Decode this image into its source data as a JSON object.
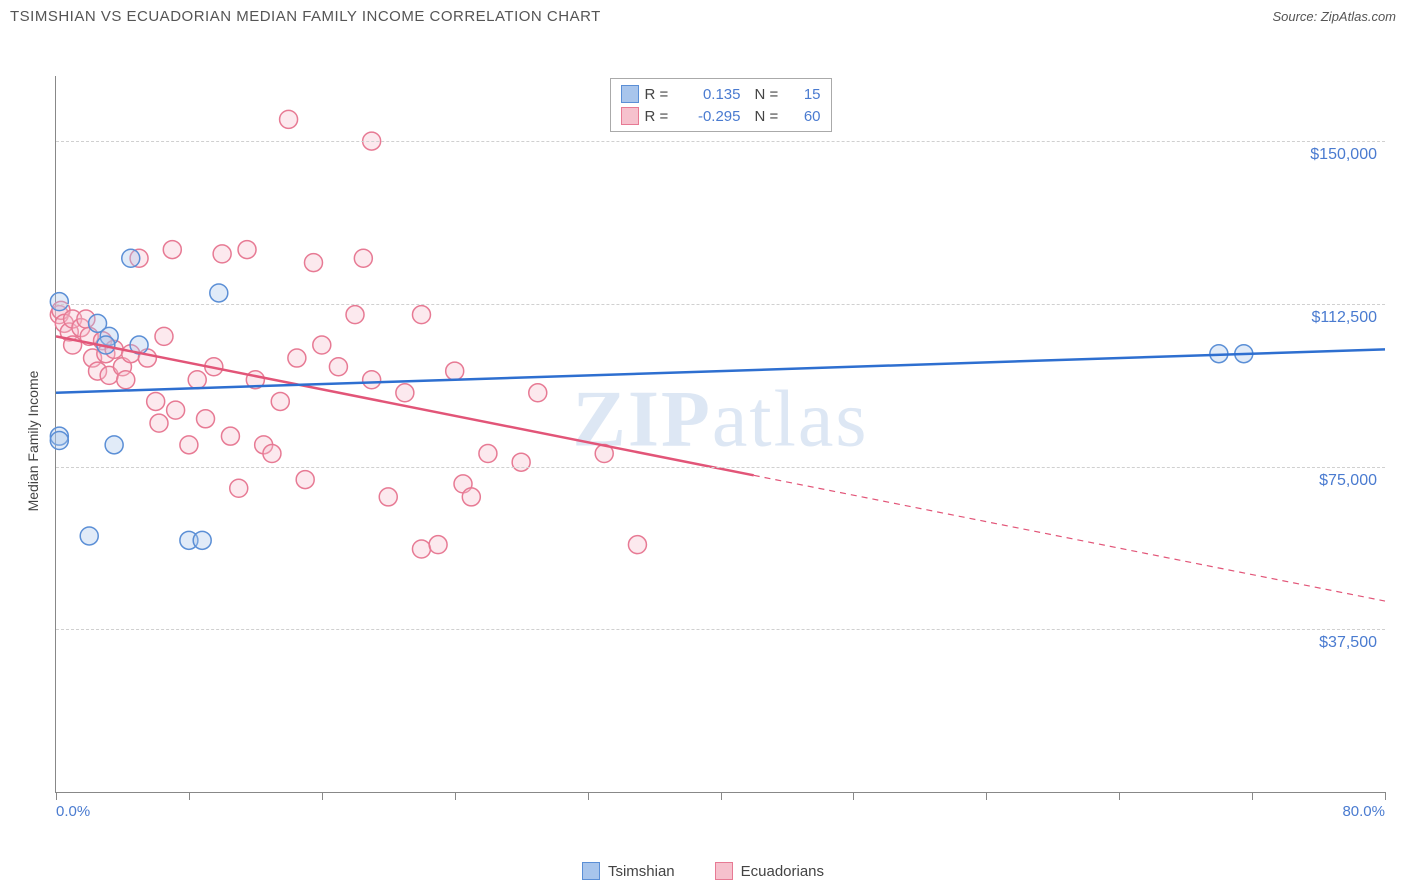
{
  "header": {
    "title": "TSIMSHIAN VS ECUADORIAN MEDIAN FAMILY INCOME CORRELATION CHART",
    "source": "Source: ZipAtlas.com"
  },
  "watermark": {
    "part1": "ZIP",
    "part2": "atlas"
  },
  "chart": {
    "type": "scatter",
    "y_axis_label": "Median Family Income",
    "background_color": "#ffffff",
    "grid_color": "#d0d0d0",
    "axis_color": "#888888",
    "x_range": {
      "min": 0.0,
      "max": 80.0,
      "unit": "%"
    },
    "y_range": {
      "min": 0,
      "max": 165000,
      "unit": "$"
    },
    "y_ticks": [
      37500,
      75000,
      112500,
      150000
    ],
    "y_tick_labels": [
      "$37,500",
      "$75,000",
      "$112,500",
      "$150,000"
    ],
    "x_ticks": [
      0,
      8,
      16,
      24,
      32,
      40,
      48,
      56,
      64,
      72,
      80
    ],
    "x_range_labels": {
      "min": "0.0%",
      "max": "80.0%"
    },
    "marker_radius": 9,
    "marker_fill_opacity": 0.35,
    "marker_stroke_width": 1.5,
    "trendline_width": 2.5,
    "series": {
      "tsimshian": {
        "label": "Tsimshian",
        "color_fill": "#a8c5ec",
        "color_stroke": "#5b8fd6",
        "trend_color": "#2e6fd0",
        "R": "0.135",
        "N": "15",
        "points": [
          [
            0.2,
            113000
          ],
          [
            0.2,
            82000
          ],
          [
            0.2,
            81000
          ],
          [
            2.5,
            108000
          ],
          [
            3.2,
            105000
          ],
          [
            4.5,
            123000
          ],
          [
            3.0,
            103000
          ],
          [
            5.0,
            103000
          ],
          [
            2.0,
            59000
          ],
          [
            3.5,
            80000
          ],
          [
            8.0,
            58000
          ],
          [
            8.8,
            58000
          ],
          [
            9.8,
            115000
          ],
          [
            70.0,
            101000
          ],
          [
            71.5,
            101000
          ]
        ],
        "trendline": {
          "x1": 0,
          "y1": 92000,
          "x2": 80,
          "y2": 102000,
          "dashed_from_x": null
        }
      },
      "ecuadorians": {
        "label": "Ecuadorians",
        "color_fill": "#f6c1cd",
        "color_stroke": "#e77a94",
        "trend_color": "#e25578",
        "R": "-0.295",
        "N": "60",
        "points": [
          [
            0.2,
            110000
          ],
          [
            0.3,
            111000
          ],
          [
            0.5,
            108000
          ],
          [
            0.8,
            106000
          ],
          [
            1.0,
            109000
          ],
          [
            1.0,
            103000
          ],
          [
            1.5,
            107000
          ],
          [
            1.8,
            109000
          ],
          [
            2.0,
            105000
          ],
          [
            2.2,
            100000
          ],
          [
            2.5,
            97000
          ],
          [
            2.8,
            104000
          ],
          [
            3.0,
            101000
          ],
          [
            3.2,
            96000
          ],
          [
            3.5,
            102000
          ],
          [
            4.0,
            98000
          ],
          [
            4.2,
            95000
          ],
          [
            4.5,
            101000
          ],
          [
            5.0,
            123000
          ],
          [
            5.5,
            100000
          ],
          [
            6.0,
            90000
          ],
          [
            6.2,
            85000
          ],
          [
            6.5,
            105000
          ],
          [
            7.0,
            125000
          ],
          [
            7.2,
            88000
          ],
          [
            8.0,
            80000
          ],
          [
            8.5,
            95000
          ],
          [
            9.0,
            86000
          ],
          [
            9.5,
            98000
          ],
          [
            10.0,
            124000
          ],
          [
            10.5,
            82000
          ],
          [
            11.0,
            70000
          ],
          [
            11.5,
            125000
          ],
          [
            12.0,
            95000
          ],
          [
            12.5,
            80000
          ],
          [
            13.0,
            78000
          ],
          [
            13.5,
            90000
          ],
          [
            14.0,
            155000
          ],
          [
            14.5,
            100000
          ],
          [
            15.0,
            72000
          ],
          [
            15.5,
            122000
          ],
          [
            16.0,
            103000
          ],
          [
            17.0,
            98000
          ],
          [
            18.0,
            110000
          ],
          [
            18.5,
            123000
          ],
          [
            19.0,
            150000
          ],
          [
            19.0,
            95000
          ],
          [
            20.0,
            68000
          ],
          [
            21.0,
            92000
          ],
          [
            22.0,
            110000
          ],
          [
            22.0,
            56000
          ],
          [
            23.0,
            57000
          ],
          [
            24.0,
            97000
          ],
          [
            24.5,
            71000
          ],
          [
            25.0,
            68000
          ],
          [
            26.0,
            78000
          ],
          [
            28.0,
            76000
          ],
          [
            29.0,
            92000
          ],
          [
            33.0,
            78000
          ],
          [
            35.0,
            57000
          ]
        ],
        "trendline": {
          "x1": 0,
          "y1": 105000,
          "x2": 80,
          "y2": 44000,
          "dashed_from_x": 42
        }
      }
    }
  },
  "legend_stats": {
    "r_label": "R =",
    "n_label": "N ="
  }
}
